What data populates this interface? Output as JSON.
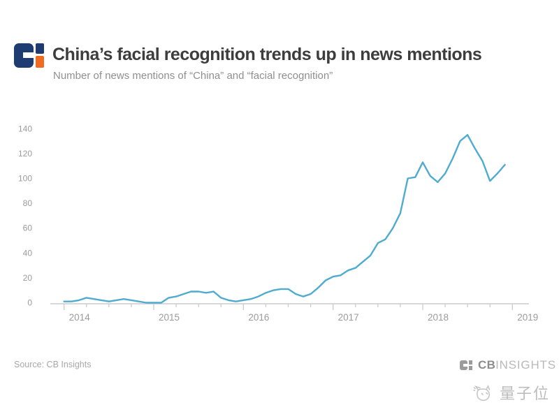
{
  "header": {
    "title": "China’s facial recognition trends up in news mentions",
    "subtitle": "Number of news mentions of “China” and “facial recognition”"
  },
  "brand_colors": {
    "logo_navy": "#1e3c72",
    "logo_orange": "#f16a21",
    "line_blue": "#4faccf",
    "axis_gray": "#cccccc",
    "label_gray": "#9b9b9b"
  },
  "chart_data": {
    "type": "line",
    "title": "China’s facial recognition trends up in news mentions",
    "subtitle": "Number of news mentions of “China” and “facial recognition”",
    "x_start": "2014-01",
    "x_end": "2018-12",
    "x_freq": "monthly",
    "x_tick_labels": [
      "2014",
      "2015",
      "2016",
      "2017",
      "2018",
      "2019"
    ],
    "y_ticks": [
      0,
      20,
      40,
      60,
      80,
      100,
      120,
      140
    ],
    "ylim": [
      0,
      140
    ],
    "grid": false,
    "legend_position": "none",
    "series": [
      {
        "name": "news mentions",
        "color": "#4faccf",
        "values": [
          1,
          1,
          2,
          4,
          3,
          2,
          1,
          2,
          3,
          2,
          1,
          0,
          0,
          0,
          4,
          5,
          7,
          9,
          9,
          8,
          9,
          4,
          2,
          1,
          2,
          3,
          5,
          8,
          10,
          11,
          11,
          7,
          5,
          7,
          12,
          18,
          21,
          22,
          26,
          28,
          33,
          38,
          48,
          51,
          60,
          72,
          100,
          101,
          113,
          102,
          97,
          104,
          116,
          130,
          135,
          124,
          114,
          98,
          104,
          111
        ]
      }
    ]
  },
  "footer": {
    "source": "Source: CB Insights",
    "brand": {
      "cb": "CB",
      "insights": "INSIGHTS"
    },
    "watermark": "量子位"
  }
}
